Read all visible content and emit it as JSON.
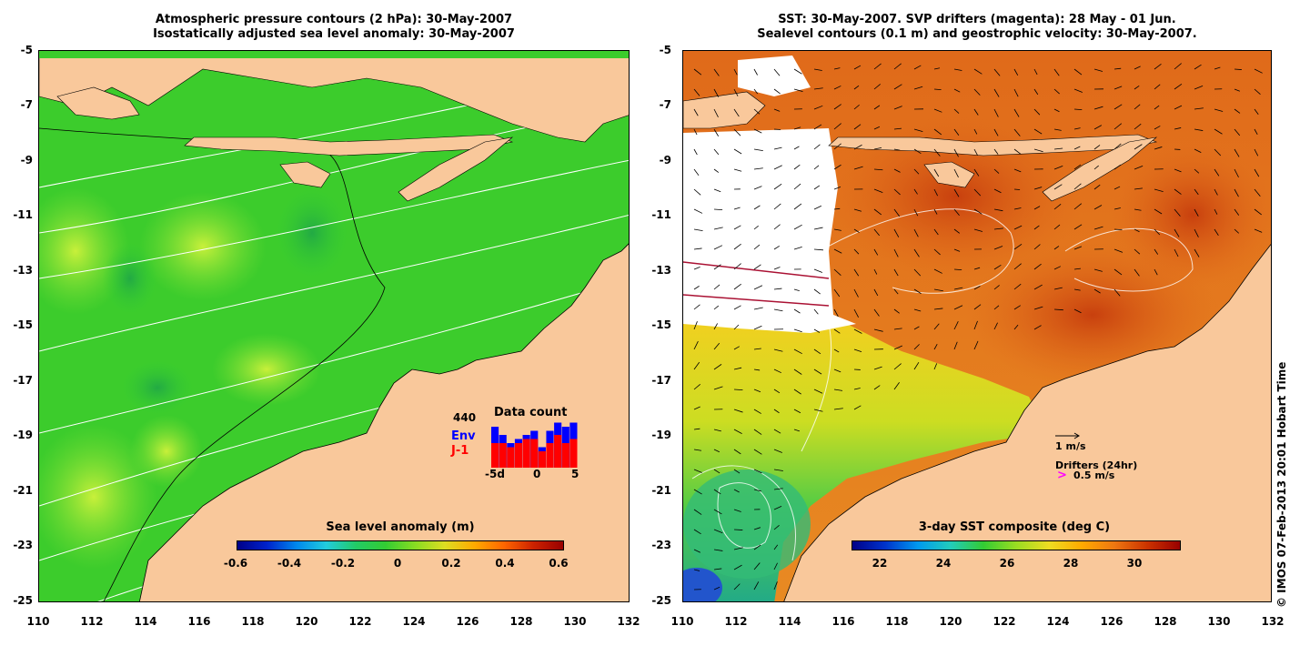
{
  "left_panel": {
    "title_line1": "Atmospheric pressure contours (2 hPa): 30-May-2007",
    "title_line2": "Isostatically adjusted sea level anomaly: 30-May-2007",
    "colorbar_title": "Sea level anomaly (m)",
    "colorbar_ticks": [
      "-0.6",
      "-0.4",
      "-0.2",
      "0",
      "0.2",
      "0.4",
      "0.6"
    ],
    "data_count": {
      "title": "Data count",
      "count": "440",
      "env_label": "Env",
      "j1_label": "J-1",
      "x_ticks": [
        "-5d",
        "0",
        "5"
      ],
      "env_values": [
        10,
        8,
        6,
        7,
        8,
        9,
        5,
        9,
        11,
        10,
        11
      ],
      "j1_values": [
        6,
        6,
        5,
        6,
        7,
        7,
        4,
        6,
        8,
        6,
        7
      ]
    }
  },
  "right_panel": {
    "title_line1": "SST: 30-May-2007. SVP drifters (magenta): 28 May - 01 Jun.",
    "title_line2": "Sealevel contours (0.1 m) and geostrophic velocity: 30-May-2007.",
    "colorbar_title": "3-day SST composite (deg C)",
    "colorbar_ticks": [
      "22",
      "24",
      "26",
      "28",
      "30"
    ],
    "velocity_scale_label": "1 m/s",
    "drifters_label": "Drifters (24hr)",
    "drifter_speed_label": "0.5 m/s",
    "drifter_symbol": ">"
  },
  "axes": {
    "lat_ticks": [
      "-5",
      "-7",
      "-9",
      "-11",
      "-13",
      "-15",
      "-17",
      "-19",
      "-21",
      "-23",
      "-25"
    ],
    "lon_ticks": [
      "110",
      "112",
      "114",
      "116",
      "118",
      "120",
      "122",
      "124",
      "126",
      "128",
      "130",
      "132"
    ],
    "lat_range": [
      -25,
      -5
    ],
    "lon_range": [
      110,
      132
    ]
  },
  "credit": "© IMOS 07-Feb-2013 20:01 Hobart Time",
  "colors": {
    "land": "#f9c89b",
    "ocean_green": "#33cc33",
    "sst_orange": "#e8761a",
    "env_bar": "#0000ff",
    "j1_bar": "#ff0000",
    "drifter": "#ff00ff"
  }
}
